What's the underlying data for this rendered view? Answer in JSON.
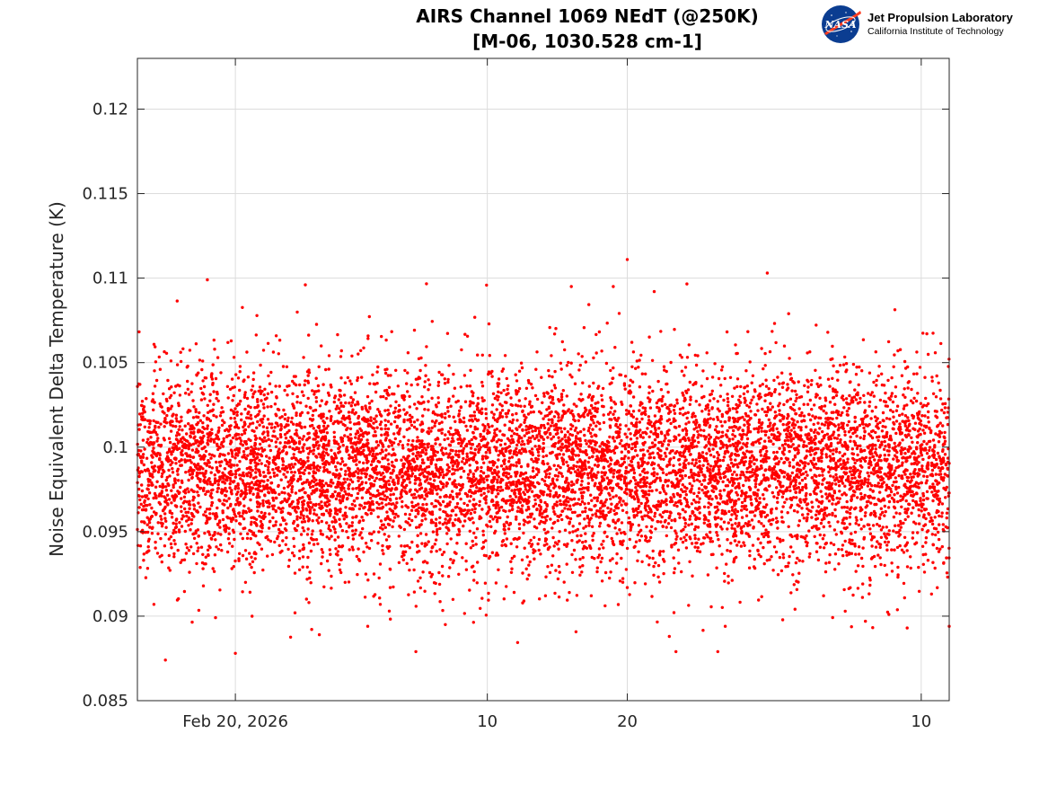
{
  "chart_data": {
    "type": "scatter",
    "title_lines": [
      "AIRS Channel 1069 NEdT (@250K)",
      "[M-06, 1030.528 cm-1]"
    ],
    "xlabel": "",
    "ylabel": "Noise Equivalent Delta Temperature (K)",
    "ylim": [
      0.085,
      0.123
    ],
    "yticks": [
      0.085,
      0.09,
      0.095,
      0.1,
      0.105,
      0.11,
      0.115,
      0.12
    ],
    "ytick_labels": [
      "0.085",
      "0.09",
      "0.095",
      "0.1",
      "0.105",
      "0.11",
      "0.115",
      "0.12"
    ],
    "xlim": [
      "2026-02-13",
      "2026-04-12"
    ],
    "xticks": [
      {
        "date": "2026-02-20",
        "label": "Feb 20, 2026"
      },
      {
        "date": "2026-03-10",
        "label": "10"
      },
      {
        "date": "2026-03-20",
        "label": "20"
      },
      {
        "date": "2026-04-10",
        "label": "10"
      }
    ],
    "grid": true,
    "point_color": "#ff0000",
    "series_summary": {
      "points": 9000,
      "center": 0.0987,
      "std": 0.0029,
      "min": 0.0874,
      "max": 0.1111
    },
    "outliers": [
      {
        "x": "2026-02-15",
        "y": 0.0874
      },
      {
        "x": "2026-02-20",
        "y": 0.0878
      },
      {
        "x": "2026-02-26",
        "y": 0.0889
      },
      {
        "x": "2026-03-07",
        "y": 0.0895
      },
      {
        "x": "2026-03-23",
        "y": 0.0888
      },
      {
        "x": "2026-03-27",
        "y": 0.0894
      },
      {
        "x": "2026-04-09",
        "y": 0.0893
      },
      {
        "x": "2026-04-12",
        "y": 0.0894
      },
      {
        "x": "2026-02-18",
        "y": 0.1099
      },
      {
        "x": "2026-03-20",
        "y": 0.1111
      },
      {
        "x": "2026-03-30",
        "y": 0.1103
      },
      {
        "x": "2026-03-19",
        "y": 0.1095
      },
      {
        "x": "2026-02-25",
        "y": 0.1096
      },
      {
        "x": "2026-03-16",
        "y": 0.1095
      }
    ]
  },
  "logo": {
    "agency": "NASA",
    "org": "Jet Propulsion Laboratory",
    "institution": "California Institute of Technology",
    "colors": {
      "blue": "#0b3d91",
      "red": "#fc3d21"
    }
  }
}
